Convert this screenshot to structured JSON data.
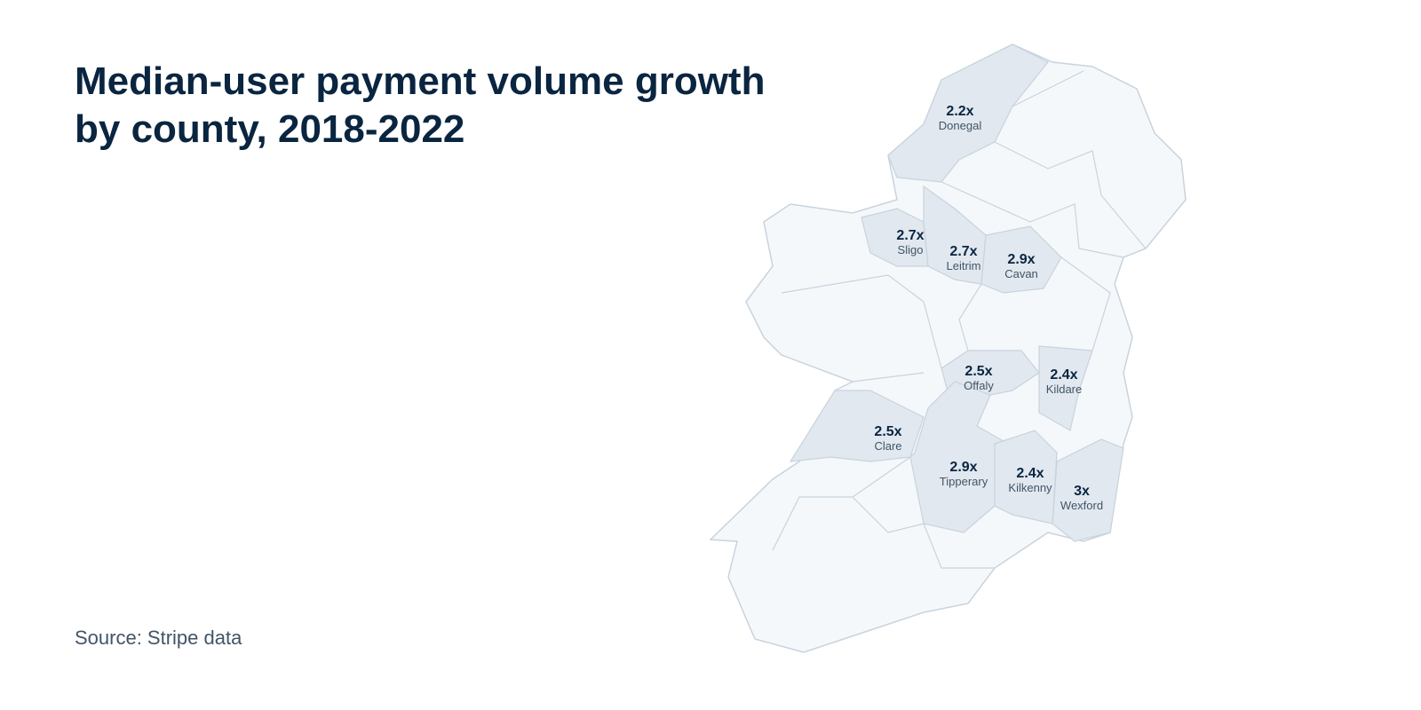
{
  "chart_data": {
    "type": "map",
    "title": "Median-user payment volume growth by county, 2018-2022",
    "source": "Source: Stripe data",
    "categories": [
      "Donegal",
      "Sligo",
      "Leitrim",
      "Cavan",
      "Offaly",
      "Kildare",
      "Clare",
      "Tipperary",
      "Kilkenny",
      "Wexford"
    ],
    "values": [
      2.2,
      2.7,
      2.7,
      2.9,
      2.5,
      2.4,
      2.5,
      2.9,
      2.4,
      3
    ],
    "value_labels": [
      "2.2x",
      "2.7x",
      "2.7x",
      "2.9x",
      "2.5x",
      "2.4x",
      "2.5x",
      "2.9x",
      "2.4x",
      "3x"
    ],
    "color": "#e1e8ef"
  }
}
